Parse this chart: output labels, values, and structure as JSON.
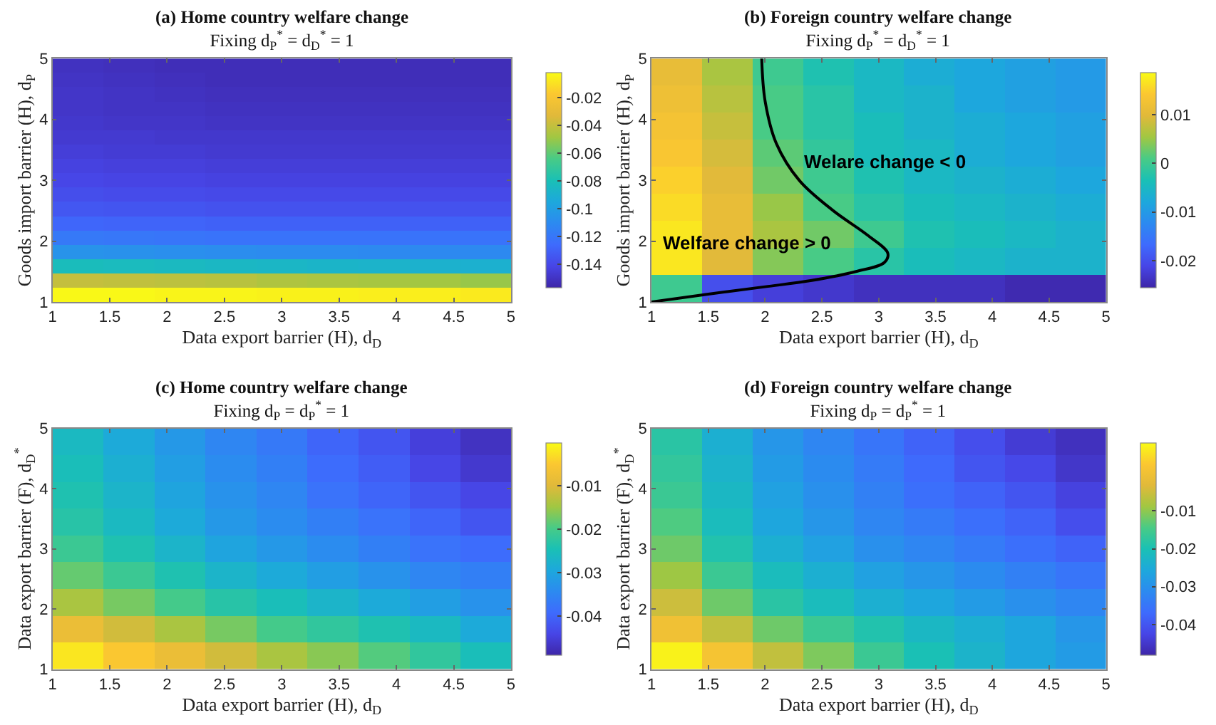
{
  "chart_data": [
    {
      "type": "heatmap",
      "title": "(a) Home country welfare change",
      "subtitle": "Fixing d$_{P}$$^{*}$ = d$_{D}$$^{*}$ = 1",
      "xlabel": "Data export barrier (H), d$_{D}$",
      "ylabel": "Goods import barrier (H), d$_{P}$",
      "xlim": [
        1,
        5
      ],
      "xticks": [
        1,
        1.5,
        2,
        2.5,
        3,
        3.5,
        4,
        4.5,
        5
      ],
      "ylim": [
        1,
        5
      ],
      "yticks": [
        1,
        2,
        3,
        4,
        5
      ],
      "clim": [
        -0.157,
        -0.002
      ],
      "cticks": [
        -0.14,
        -0.12,
        -0.1,
        -0.08,
        -0.06,
        -0.04,
        -0.02
      ],
      "cells": [
        [
          -0.151,
          -0.152,
          -0.153,
          -0.153,
          -0.153,
          -0.153,
          -0.153,
          -0.153,
          -0.153
        ],
        [
          -0.15,
          -0.151,
          -0.152,
          -0.153,
          -0.153,
          -0.153,
          -0.153,
          -0.153,
          -0.153
        ],
        [
          -0.149,
          -0.15,
          -0.151,
          -0.152,
          -0.152,
          -0.152,
          -0.152,
          -0.152,
          -0.152
        ],
        [
          -0.149,
          -0.15,
          -0.15,
          -0.151,
          -0.151,
          -0.151,
          -0.151,
          -0.151,
          -0.151
        ],
        [
          -0.148,
          -0.149,
          -0.149,
          -0.15,
          -0.15,
          -0.15,
          -0.15,
          -0.15,
          -0.15
        ],
        [
          -0.147,
          -0.147,
          -0.148,
          -0.148,
          -0.148,
          -0.148,
          -0.148,
          -0.148,
          -0.148
        ],
        [
          -0.145,
          -0.146,
          -0.146,
          -0.147,
          -0.147,
          -0.147,
          -0.147,
          -0.147,
          -0.147
        ],
        [
          -0.143,
          -0.144,
          -0.144,
          -0.145,
          -0.145,
          -0.145,
          -0.145,
          -0.145,
          -0.145
        ],
        [
          -0.141,
          -0.142,
          -0.142,
          -0.143,
          -0.143,
          -0.143,
          -0.143,
          -0.143,
          -0.143
        ],
        [
          -0.138,
          -0.139,
          -0.139,
          -0.14,
          -0.14,
          -0.14,
          -0.14,
          -0.14,
          -0.14
        ],
        [
          -0.134,
          -0.135,
          -0.135,
          -0.136,
          -0.136,
          -0.136,
          -0.136,
          -0.136,
          -0.136
        ],
        [
          -0.128,
          -0.129,
          -0.129,
          -0.13,
          -0.13,
          -0.13,
          -0.13,
          -0.13,
          -0.13
        ],
        [
          -0.119,
          -0.12,
          -0.121,
          -0.122,
          -0.122,
          -0.122,
          -0.122,
          -0.122,
          -0.122
        ],
        [
          -0.106,
          -0.107,
          -0.108,
          -0.109,
          -0.11,
          -0.11,
          -0.111,
          -0.111,
          -0.111
        ],
        [
          -0.082,
          -0.083,
          -0.084,
          -0.085,
          -0.086,
          -0.087,
          -0.088,
          -0.089,
          -0.09
        ],
        [
          -0.04,
          -0.041,
          -0.042,
          -0.043,
          -0.045,
          -0.046,
          -0.047,
          -0.048,
          -0.05
        ],
        [
          -0.003,
          -0.003,
          -0.004,
          -0.004,
          -0.005,
          -0.005,
          -0.006,
          -0.006,
          -0.007
        ]
      ]
    },
    {
      "type": "heatmap",
      "title": "(b) Foreign country welfare change",
      "subtitle": "Fixing d$_{P}$$^{*}$ = d$_{D}$$^{*}$ = 1",
      "xlabel": "Data export barrier (H), d$_{D}$",
      "ylabel": "Goods import barrier (H), d$_{P}$",
      "xlim": [
        1,
        5
      ],
      "xticks": [
        1,
        1.5,
        2,
        2.5,
        3,
        3.5,
        4,
        4.5,
        5
      ],
      "ylim": [
        1,
        5
      ],
      "yticks": [
        1,
        2,
        3,
        4,
        5
      ],
      "clim": [
        -0.0256,
        0.0187
      ],
      "cticks": [
        -0.02,
        -0.01,
        0,
        0.01
      ],
      "cells": [
        [
          0.011,
          0.006,
          0.0,
          -0.003,
          -0.005,
          -0.007,
          -0.008,
          -0.009,
          -0.01
        ],
        [
          0.012,
          0.007,
          0.001,
          -0.002,
          -0.005,
          -0.006,
          -0.008,
          -0.009,
          -0.01
        ],
        [
          0.013,
          0.008,
          0.001,
          -0.002,
          -0.004,
          -0.006,
          -0.007,
          -0.008,
          -0.009
        ],
        [
          0.014,
          0.009,
          0.002,
          -0.001,
          -0.004,
          -0.005,
          -0.007,
          -0.008,
          -0.009
        ],
        [
          0.015,
          0.01,
          0.003,
          0.0,
          -0.003,
          -0.005,
          -0.006,
          -0.007,
          -0.008
        ],
        [
          0.016,
          0.011,
          0.005,
          0.001,
          -0.002,
          -0.004,
          -0.005,
          -0.006,
          -0.007
        ],
        [
          0.017,
          0.011,
          0.006,
          0.003,
          0.0,
          -0.003,
          -0.004,
          -0.005,
          -0.006
        ],
        [
          0.017,
          0.01,
          0.004,
          0.001,
          -0.002,
          -0.004,
          -0.005,
          -0.006,
          -0.006
        ],
        [
          0.0,
          -0.02,
          -0.022,
          -0.023,
          -0.024,
          -0.024,
          -0.024,
          -0.025,
          -0.025
        ]
      ],
      "series": [
        {
          "type": "line",
          "color": "#000000",
          "x": [
            1.97,
            2.0,
            2.1,
            2.3,
            2.6,
            2.9,
            3.08,
            3.05,
            2.8,
            2.4,
            2.0,
            1.5,
            1.0
          ],
          "values": [
            5,
            4.3,
            3.6,
            3.0,
            2.5,
            2.1,
            1.8,
            1.65,
            1.5,
            1.35,
            1.25,
            1.13,
            1.0
          ]
        }
      ],
      "annotations": [
        "Welfare change > 0",
        "Welare change < 0"
      ]
    },
    {
      "type": "heatmap",
      "title": "(c) Home country welfare change",
      "subtitle": "Fixing d$_{P}$ = d$_{P}$$^{*}$ = 1",
      "xlabel": "Data export barrier (H), d$_{D}$",
      "ylabel": "Data export barrier (F), d$_{D}$$^{*}$",
      "xlim": [
        1,
        5
      ],
      "xticks": [
        1,
        1.5,
        2,
        2.5,
        3,
        3.5,
        4,
        4.5,
        5
      ],
      "ylim": [
        1,
        5
      ],
      "yticks": [
        1,
        2,
        3,
        4,
        5
      ],
      "clim": [
        -0.049,
        0
      ],
      "cticks": [
        -0.04,
        -0.03,
        -0.02,
        -0.01
      ],
      "cells": [
        [
          -0.026,
          -0.029,
          -0.032,
          -0.035,
          -0.037,
          -0.04,
          -0.042,
          -0.045,
          -0.047
        ],
        [
          -0.025,
          -0.028,
          -0.031,
          -0.034,
          -0.036,
          -0.039,
          -0.041,
          -0.044,
          -0.046
        ],
        [
          -0.024,
          -0.027,
          -0.03,
          -0.033,
          -0.035,
          -0.038,
          -0.04,
          -0.042,
          -0.044
        ],
        [
          -0.023,
          -0.026,
          -0.029,
          -0.032,
          -0.034,
          -0.036,
          -0.038,
          -0.04,
          -0.042
        ],
        [
          -0.021,
          -0.024,
          -0.027,
          -0.03,
          -0.032,
          -0.034,
          -0.036,
          -0.038,
          -0.039
        ],
        [
          -0.018,
          -0.021,
          -0.024,
          -0.027,
          -0.029,
          -0.031,
          -0.033,
          -0.035,
          -0.036
        ],
        [
          -0.014,
          -0.017,
          -0.02,
          -0.023,
          -0.025,
          -0.027,
          -0.029,
          -0.031,
          -0.033
        ],
        [
          -0.008,
          -0.011,
          -0.014,
          -0.017,
          -0.02,
          -0.022,
          -0.024,
          -0.026,
          -0.029
        ],
        [
          -0.002,
          -0.005,
          -0.008,
          -0.011,
          -0.014,
          -0.016,
          -0.019,
          -0.022,
          -0.025
        ]
      ]
    },
    {
      "type": "heatmap",
      "title": "(d) Foreign country welfare change",
      "subtitle": "Fixing d$_{P}$ = d$_{P}$$^{*}$ = 1",
      "xlabel": "Data export barrier (H), d$_{D}$",
      "ylabel": "Data export barrier (F), d$_{D}$$^{*}$",
      "xlim": [
        1,
        5
      ],
      "xticks": [
        1,
        1.5,
        2,
        2.5,
        3,
        3.5,
        4,
        4.5,
        5
      ],
      "ylim": [
        1,
        5
      ],
      "yticks": [
        1,
        2,
        3,
        4,
        5
      ],
      "clim": [
        -0.048,
        0.008
      ],
      "cticks": [
        -0.04,
        -0.03,
        -0.02,
        -0.01
      ],
      "cells": [
        [
          -0.018,
          -0.024,
          -0.029,
          -0.032,
          -0.035,
          -0.038,
          -0.041,
          -0.044,
          -0.046
        ],
        [
          -0.017,
          -0.023,
          -0.028,
          -0.031,
          -0.034,
          -0.037,
          -0.04,
          -0.042,
          -0.045
        ],
        [
          -0.016,
          -0.022,
          -0.027,
          -0.03,
          -0.033,
          -0.036,
          -0.038,
          -0.04,
          -0.043
        ],
        [
          -0.014,
          -0.021,
          -0.026,
          -0.029,
          -0.032,
          -0.034,
          -0.036,
          -0.038,
          -0.041
        ],
        [
          -0.012,
          -0.019,
          -0.024,
          -0.027,
          -0.03,
          -0.032,
          -0.034,
          -0.036,
          -0.038
        ],
        [
          -0.009,
          -0.016,
          -0.021,
          -0.024,
          -0.027,
          -0.029,
          -0.031,
          -0.033,
          -0.035
        ],
        [
          -0.005,
          -0.012,
          -0.018,
          -0.021,
          -0.024,
          -0.026,
          -0.028,
          -0.03,
          -0.032
        ],
        [
          0.0,
          -0.006,
          -0.012,
          -0.016,
          -0.019,
          -0.022,
          -0.024,
          -0.026,
          -0.029
        ],
        [
          0.007,
          0.001,
          -0.006,
          -0.011,
          -0.016,
          -0.02,
          -0.023,
          -0.026,
          -0.028
        ]
      ]
    }
  ]
}
